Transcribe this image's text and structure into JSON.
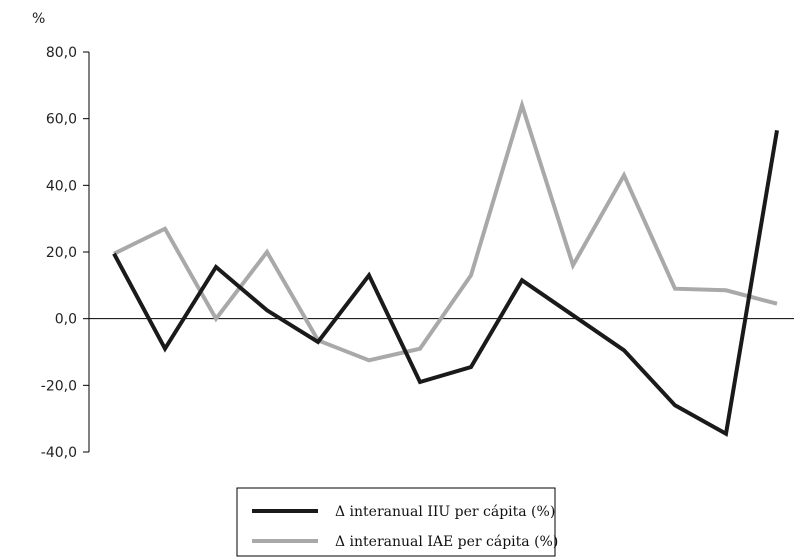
{
  "chart_data": {
    "type": "line",
    "ylabel": "%",
    "ylim": [
      -40,
      80
    ],
    "yticks": [
      80,
      60,
      40,
      20,
      0,
      -20,
      -40
    ],
    "ytick_labels": [
      "80,0",
      "60,0",
      "40,0",
      "20,0",
      "0,0",
      "-20,0",
      "-40,0"
    ],
    "x": [
      1,
      2,
      3,
      4,
      5,
      6,
      7,
      8,
      9,
      10,
      11,
      12,
      13,
      14
    ],
    "series": [
      {
        "name": "Δ interanual IIU per cápita (%)",
        "color": "#1a1a1a",
        "values": [
          19.5,
          -9,
          15.5,
          2.5,
          -7,
          13,
          -19,
          -14.5,
          11.5,
          1,
          -9.5,
          -26,
          -34.5,
          56.5
        ]
      },
      {
        "name": "Δ interanual IAE per cápita (%)",
        "color": "#a9a9a9",
        "values": [
          19.5,
          27,
          0,
          20,
          -6.5,
          -12.5,
          -9,
          13,
          64,
          16,
          43,
          9,
          8.5,
          4.5
        ]
      }
    ],
    "grid": false,
    "legend_position": "bottom-center"
  }
}
